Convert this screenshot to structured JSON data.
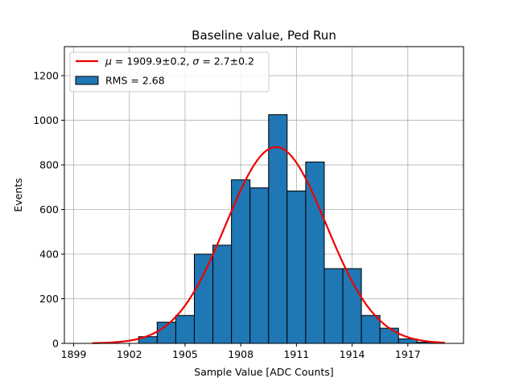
{
  "chart_data": {
    "type": "bar",
    "title": "Baseline value, Ped Run",
    "xlabel": "Sample Value [ADC Counts]",
    "ylabel": "Events",
    "xlim": [
      1898.5,
      1920.0
    ],
    "ylim": [
      0,
      1330
    ],
    "xticks": [
      1899,
      1902,
      1905,
      1908,
      1911,
      1914,
      1917
    ],
    "yticks": [
      0,
      200,
      400,
      600,
      800,
      1000,
      1200
    ],
    "grid": true,
    "legend_position": "upper-left",
    "histogram": {
      "name": "RMS = 2.68",
      "color": "#1f77b4",
      "bin_edges": [
        1902.5,
        1903.5,
        1904.5,
        1905.5,
        1906.5,
        1907.5,
        1908.5,
        1909.5,
        1910.5,
        1911.5,
        1912.5,
        1913.5,
        1914.5,
        1915.5,
        1916.5,
        1917.5,
        1918.5
      ],
      "counts": [
        30,
        95,
        125,
        400,
        440,
        733,
        697,
        1025,
        683,
        813,
        335,
        335,
        125,
        68,
        20,
        5
      ]
    },
    "fit": {
      "name_html": "<tspan font-style='italic'>μ</tspan> = 1909.9±0.2, <tspan font-style='italic'>σ</tspan> = 2.7±0.2",
      "type": "gaussian",
      "mu": 1909.9,
      "sigma": 2.7,
      "amplitude": 880,
      "x_range": [
        1900.0,
        1919.0
      ],
      "color": "#ee0000"
    },
    "legend": [
      {
        "kind": "line",
        "label_text": "μ = 1909.9±0.2, σ = 2.7±0.2",
        "color": "#ee0000"
      },
      {
        "kind": "patch",
        "label_text": "RMS = 2.68",
        "color": "#1f77b4"
      }
    ]
  }
}
